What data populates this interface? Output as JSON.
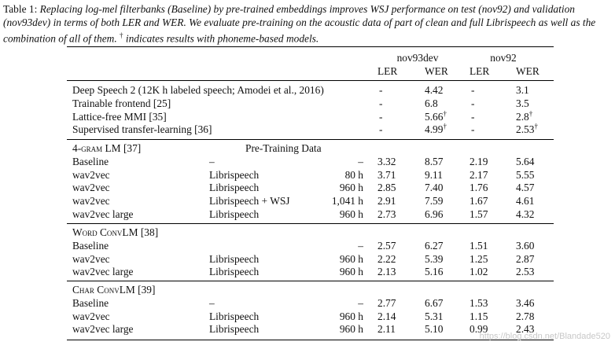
{
  "caption": {
    "label": "Table 1: ",
    "text": "Replacing log-mel filterbanks (Baseline) by pre-trained embeddings improves WSJ performance on test (nov92) and validation (nov93dev) in terms of both LER and WER. We evaluate pre-training on the acoustic data of part of clean and full Librispeech as well as the combination of all of them.",
    "dagger": "†",
    "tail": " indicates results with phoneme-based models."
  },
  "columns": {
    "group1": "nov93dev",
    "group2": "nov92",
    "ler": "LER",
    "wer": "WER"
  },
  "prior_work": [
    {
      "name": "Deep Speech 2 (12K h labeled speech; Amodei et al., 2016)",
      "dev_ler": "-",
      "dev_wer": "4.42",
      "dev_dag": "",
      "test_ler": "-",
      "test_wer": "3.1",
      "test_dag": ""
    },
    {
      "name": "Trainable frontend [25]",
      "dev_ler": "-",
      "dev_wer": "6.8",
      "dev_dag": "",
      "test_ler": "-",
      "test_wer": "3.5",
      "test_dag": ""
    },
    {
      "name": "Lattice-free MMI [35]",
      "dev_ler": "-",
      "dev_wer": "5.66",
      "dev_dag": "†",
      "test_ler": "-",
      "test_wer": "2.8",
      "test_dag": "†"
    },
    {
      "name": "Supervised transfer-learning [36]",
      "dev_ler": "-",
      "dev_wer": "4.99",
      "dev_dag": "†",
      "test_ler": "-",
      "test_wer": "2.53",
      "test_dag": "†"
    }
  ],
  "sections": [
    {
      "title": "4-gram LM [37]",
      "pretrain_header": "Pre-Training Data",
      "rows": [
        {
          "name": "Baseline",
          "data": "–",
          "hours": "–",
          "dev_ler": "3.32",
          "dev_wer": "8.57",
          "test_ler": "2.19",
          "test_wer": "5.64"
        },
        {
          "name": "wav2vec",
          "data": "Librispeech",
          "hours": "80 h",
          "dev_ler": "3.71",
          "dev_wer": "9.11",
          "test_ler": "2.17",
          "test_wer": "5.55"
        },
        {
          "name": "wav2vec",
          "data": "Librispeech",
          "hours": "960 h",
          "dev_ler": "2.85",
          "dev_wer": "7.40",
          "test_ler": "1.76",
          "test_wer": "4.57"
        },
        {
          "name": "wav2vec",
          "data": "Librispeech + WSJ",
          "hours": "1,041 h",
          "dev_ler": "2.91",
          "dev_wer": "7.59",
          "test_ler": "1.67",
          "test_wer": "4.61"
        },
        {
          "name": "wav2vec large",
          "data": "Librispeech",
          "hours": "960 h",
          "dev_ler": "2.73",
          "dev_wer": "6.96",
          "test_ler": "1.57",
          "test_wer": "4.32"
        }
      ]
    },
    {
      "title": "Word ConvLM [38]",
      "pretrain_header": "",
      "rows": [
        {
          "name": "Baseline",
          "data": "",
          "hours": "–",
          "dev_ler": "2.57",
          "dev_wer": "6.27",
          "test_ler": "1.51",
          "test_wer": "3.60"
        },
        {
          "name": "wav2vec",
          "data": "Librispeech",
          "hours": "960 h",
          "dev_ler": "2.22",
          "dev_wer": "5.39",
          "test_ler": "1.25",
          "test_wer": "2.87"
        },
        {
          "name": "wav2vec large",
          "data": "Librispeech",
          "hours": "960 h",
          "dev_ler": "2.13",
          "dev_wer": "5.16",
          "test_ler": "1.02",
          "test_wer": "2.53"
        }
      ]
    },
    {
      "title": "Char ConvLM [39]",
      "pretrain_header": "",
      "rows": [
        {
          "name": "Baseline",
          "data": "–",
          "hours": "–",
          "dev_ler": "2.77",
          "dev_wer": "6.67",
          "test_ler": "1.53",
          "test_wer": "3.46"
        },
        {
          "name": "wav2vec",
          "data": "Librispeech",
          "hours": "960 h",
          "dev_ler": "2.14",
          "dev_wer": "5.31",
          "test_ler": "1.15",
          "test_wer": "2.78"
        },
        {
          "name": "wav2vec large",
          "data": "Librispeech",
          "hours": "960 h",
          "dev_ler": "2.11",
          "dev_wer": "5.10",
          "test_ler": "0.99",
          "test_wer": "2.43"
        }
      ]
    }
  ],
  "watermark": "https://blog.csdn.net/Blandade520"
}
